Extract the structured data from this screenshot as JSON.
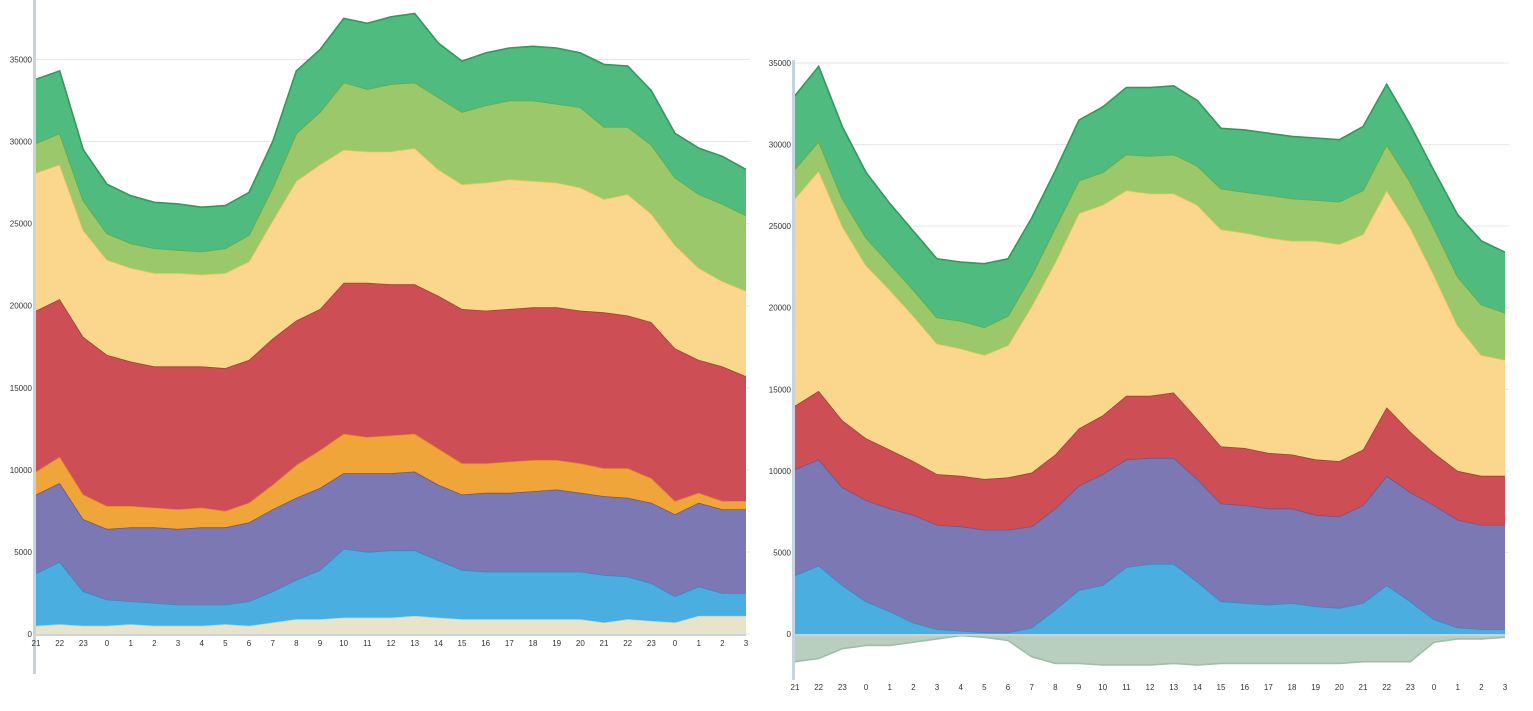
{
  "chart_data": [
    {
      "type": "area",
      "stacked": true,
      "title": "",
      "xlabel": "",
      "ylabel": "",
      "ylim": [
        0,
        38500
      ],
      "yticks": [
        0,
        5000,
        10000,
        15000,
        20000,
        25000,
        30000,
        35000
      ],
      "x": [
        "21",
        "22",
        "23",
        "0",
        "1",
        "2",
        "3",
        "4",
        "5",
        "6",
        "7",
        "8",
        "9",
        "10",
        "11",
        "12",
        "13",
        "14",
        "15",
        "16",
        "17",
        "18",
        "19",
        "20",
        "21",
        "22",
        "23",
        "0",
        "1",
        "2",
        "3"
      ],
      "grid": true,
      "legend": "none",
      "series": [
        {
          "color": "#e8e4cc",
          "stroke": "#d8d2b0",
          "values": [
            500,
            600,
            500,
            500,
            600,
            500,
            500,
            500,
            600,
            500,
            700,
            900,
            900,
            1000,
            1000,
            1000,
            1100,
            1000,
            900,
            900,
            900,
            900,
            900,
            900,
            700,
            900,
            800,
            700,
            1100,
            1100,
            1100
          ]
        },
        {
          "color": "#4aaee0",
          "stroke": "#2a8fc8",
          "values": [
            3200,
            3800,
            2100,
            1600,
            1400,
            1400,
            1300,
            1300,
            1200,
            1500,
            1900,
            2400,
            3000,
            4200,
            4000,
            4100,
            4000,
            3500,
            3000,
            2900,
            2900,
            2900,
            2900,
            2900,
            2900,
            2600,
            2300,
            1600,
            1800,
            1400,
            1400
          ]
        },
        {
          "color": "#7b78b4",
          "stroke": "#5e5a9c",
          "values": [
            4800,
            4800,
            4400,
            4300,
            4500,
            4600,
            4600,
            4700,
            4700,
            4800,
            5000,
            5000,
            5000,
            4600,
            4800,
            4700,
            4800,
            4600,
            4600,
            4800,
            4800,
            4900,
            5000,
            4800,
            4800,
            4800,
            4900,
            5000,
            5100,
            5100,
            5100
          ]
        },
        {
          "color": "#f0a53a",
          "stroke": "#e08b14",
          "values": [
            1400,
            1600,
            1500,
            1400,
            1300,
            1200,
            1200,
            1200,
            1000,
            1200,
            1500,
            2000,
            2300,
            2400,
            2200,
            2300,
            2300,
            2200,
            1900,
            1800,
            1900,
            1900,
            1800,
            1800,
            1700,
            1800,
            1500,
            800,
            600,
            500,
            500
          ]
        },
        {
          "color": "#cd4f55",
          "stroke": "#a83a40",
          "values": [
            9800,
            9600,
            9600,
            9200,
            8800,
            8600,
            8700,
            8600,
            8700,
            8700,
            8900,
            8800,
            8600,
            9200,
            9400,
            9200,
            9100,
            9300,
            9400,
            9300,
            9300,
            9300,
            9300,
            9300,
            9500,
            9300,
            9500,
            9300,
            8100,
            8200,
            7600
          ]
        },
        {
          "color": "#fad78c",
          "stroke": "#f3bd55",
          "values": [
            8400,
            8200,
            6500,
            5800,
            5700,
            5700,
            5700,
            5600,
            5800,
            6000,
            7200,
            8500,
            8800,
            8100,
            8000,
            8100,
            8300,
            7700,
            7600,
            7800,
            7900,
            7700,
            7600,
            7500,
            6900,
            7400,
            6600,
            6300,
            5600,
            5200,
            5200
          ]
        },
        {
          "color": "#9ac86a",
          "stroke": "#70a83a",
          "values": [
            1800,
            1900,
            1800,
            1600,
            1500,
            1500,
            1400,
            1400,
            1500,
            1600,
            2000,
            2900,
            3200,
            4100,
            3800,
            4100,
            4000,
            4400,
            4400,
            4700,
            4800,
            4900,
            4800,
            4900,
            4400,
            4100,
            4200,
            4100,
            4500,
            4700,
            4600
          ]
        },
        {
          "color": "#4fbb7e",
          "stroke": "#2e9a5e",
          "values": [
            3900,
            3800,
            3100,
            3000,
            2900,
            2800,
            2800,
            2700,
            2600,
            2600,
            2800,
            3800,
            3800,
            3900,
            4000,
            4100,
            4200,
            3300,
            3100,
            3200,
            3200,
            3300,
            3400,
            3300,
            3800,
            3700,
            3300,
            2700,
            2800,
            2900,
            2800
          ]
        }
      ]
    },
    {
      "type": "area",
      "stacked": true,
      "title": "",
      "xlabel": "",
      "ylabel": "",
      "ylim": [
        -2500,
        35000
      ],
      "yticks": [
        0,
        5000,
        10000,
        15000,
        20000,
        25000,
        30000,
        35000
      ],
      "x": [
        "21",
        "22",
        "23",
        "0",
        "1",
        "2",
        "3",
        "4",
        "5",
        "6",
        "7",
        "8",
        "9",
        "10",
        "11",
        "12",
        "13",
        "14",
        "15",
        "16",
        "17",
        "18",
        "19",
        "20",
        "21",
        "22",
        "23",
        "0",
        "1",
        "2",
        "3"
      ],
      "grid": true,
      "legend": "none",
      "series": [
        {
          "color": "#b8cfc0",
          "stroke": "#a3bba9",
          "negative": true,
          "values": [
            -1700,
            -1500,
            -900,
            -700,
            -700,
            -500,
            -300,
            -100,
            -200,
            -400,
            -1400,
            -1800,
            -1800,
            -1900,
            -1900,
            -1900,
            -1800,
            -1900,
            -1800,
            -1800,
            -1800,
            -1800,
            -1800,
            -1800,
            -1700,
            -1700,
            -1700,
            -500,
            -300,
            -300,
            -200
          ]
        },
        {
          "color": "#4aaee0",
          "stroke": "#2a8fc8",
          "values": [
            3600,
            4200,
            3000,
            2000,
            1400,
            700,
            300,
            200,
            100,
            100,
            400,
            1500,
            2700,
            3000,
            4100,
            4300,
            4300,
            3200,
            2000,
            1900,
            1800,
            1900,
            1700,
            1600,
            1900,
            3000,
            2000,
            900,
            400,
            300,
            300
          ]
        },
        {
          "color": "#7b78b4",
          "stroke": "#5e5a9c",
          "values": [
            6500,
            6500,
            6000,
            6200,
            6300,
            6600,
            6400,
            6400,
            6300,
            6300,
            6200,
            6200,
            6400,
            6800,
            6600,
            6500,
            6500,
            6300,
            6000,
            6000,
            5900,
            5800,
            5600,
            5600,
            6000,
            6700,
            6700,
            7000,
            6600,
            6400,
            6400
          ]
        },
        {
          "color": "#cd4f55",
          "stroke": "#a83a40",
          "values": [
            3900,
            4200,
            4100,
            3800,
            3600,
            3300,
            3100,
            3100,
            3100,
            3200,
            3300,
            3300,
            3500,
            3600,
            3900,
            3800,
            4000,
            3700,
            3500,
            3500,
            3400,
            3300,
            3400,
            3400,
            3400,
            4200,
            3700,
            3200,
            3000,
            3000,
            3000
          ]
        },
        {
          "color": "#fad78c",
          "stroke": "#f3bd55",
          "values": [
            12700,
            13500,
            11900,
            10600,
            9800,
            8900,
            8000,
            7800,
            7600,
            8100,
            10200,
            11800,
            13200,
            12900,
            12600,
            12400,
            12200,
            13100,
            13300,
            13200,
            13200,
            13100,
            13400,
            13300,
            13200,
            13300,
            12500,
            10900,
            8900,
            7400,
            7100
          ]
        },
        {
          "color": "#9ac86a",
          "stroke": "#70a83a",
          "values": [
            1800,
            1800,
            1700,
            1700,
            1600,
            1600,
            1600,
            1700,
            1700,
            1800,
            1900,
            2100,
            2000,
            2000,
            2200,
            2300,
            2400,
            2400,
            2500,
            2500,
            2600,
            2600,
            2500,
            2600,
            2700,
            2800,
            2800,
            2900,
            3000,
            3100,
            2900
          ]
        },
        {
          "color": "#4fbb7e",
          "stroke": "#2e9a5e",
          "values": [
            4500,
            4600,
            4400,
            4000,
            3700,
            3600,
            3600,
            3600,
            3900,
            3500,
            3500,
            3500,
            3700,
            4000,
            4100,
            4200,
            4200,
            4000,
            3700,
            3800,
            3800,
            3800,
            3800,
            3800,
            3900,
            3700,
            3500,
            3500,
            3800,
            3900,
            3700
          ]
        }
      ]
    }
  ]
}
